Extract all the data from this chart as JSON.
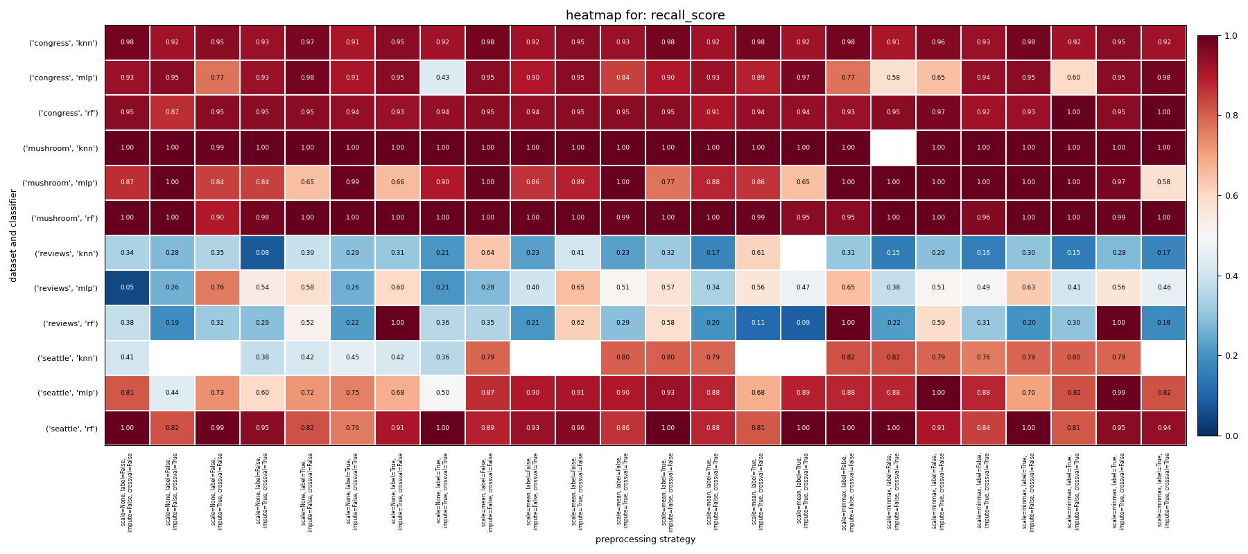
{
  "title": "heatmap for: recall_score",
  "xlabel": "preprocessing strategy",
  "ylabel": "dataset and classifier",
  "rows": [
    "('congress', 'knn')",
    "('congress', 'mlp')",
    "('congress', 'rf')",
    "('mushroom', 'knn')",
    "('mushroom', 'mlp')",
    "('mushroom', 'rf')",
    "('reviews', 'knn')",
    "('reviews', 'mlp')",
    "('reviews', 'rf')",
    "('seattle', 'knn')",
    "('seattle', 'mlp')",
    "('seattle', 'rf')"
  ],
  "cols": [
    "scale=None, label=False,\nimpute=False, crossval=False",
    "scale=None, label=False,\nimpute=False, crossval=True",
    "scale=None, label=False,\nimpute=True, crossval=False",
    "scale=None, label=False,\nimpute=True, crossval=True",
    "scale=None, label=True,\nimpute=False, crossval=False",
    "scale=None, label=True,\nimpute=False, crossval=True",
    "scale=None, label=True,\nimpute=True, crossval=False",
    "scale=None, label=True,\nimpute=True, crossval=True",
    "scale=mean, label=False,\nimpute=False, crossval=False",
    "scale=mean, label=False,\nimpute=False, crossval=True",
    "scale=mean, label=False,\nimpute=True, crossval=False",
    "scale=mean, label=False,\nimpute=True, crossval=True",
    "scale=mean, label=True,\nimpute=False, crossval=False",
    "scale=mean, label=True,\nimpute=False, crossval=True",
    "scale=mean, label=True,\nimpute=True, crossval=False",
    "scale=mean, label=True,\nimpute=True, crossval=True",
    "scale=minmax, label=False,\nimpute=False, crossval=False",
    "scale=minmax, label=False,\nimpute=False, crossval=True",
    "scale=minmax, label=False,\nimpute=True, crossval=False",
    "scale=minmax, label=False,\nimpute=True, crossval=True",
    "scale=minmax, label=True,\nimpute=False, crossval=False",
    "scale=minmax, label=True,\nimpute=False, crossval=True",
    "scale=minmax, label=True,\nimpute=True, crossval=False",
    "scale=minmax, label=True,\nimpute=True, crossval=True"
  ],
  "values": [
    [
      0.98,
      0.92,
      0.95,
      0.93,
      0.97,
      0.91,
      0.95,
      0.92,
      0.98,
      0.92,
      0.95,
      0.93,
      0.98,
      0.92,
      0.98,
      0.92,
      0.98,
      0.91,
      0.96,
      0.93,
      0.98,
      0.92,
      0.95,
      0.92
    ],
    [
      0.93,
      0.95,
      0.77,
      0.93,
      0.98,
      0.91,
      0.95,
      0.43,
      0.95,
      0.9,
      0.95,
      0.84,
      0.9,
      0.93,
      0.89,
      0.97,
      0.77,
      0.58,
      0.65,
      0.94,
      0.95,
      0.6,
      0.95,
      0.98
    ],
    [
      0.95,
      0.87,
      0.95,
      0.95,
      0.95,
      0.94,
      0.93,
      0.94,
      0.95,
      0.94,
      0.95,
      0.95,
      0.95,
      0.91,
      0.94,
      0.94,
      0.93,
      0.95,
      0.97,
      0.92,
      0.93,
      1.0,
      0.95,
      1.0
    ],
    [
      1.0,
      1.0,
      0.99,
      1.0,
      1.0,
      1.0,
      1.0,
      1.0,
      1.0,
      1.0,
      1.0,
      1.0,
      1.0,
      1.0,
      1.0,
      1.0,
      1.0,
      null,
      1.0,
      1.0,
      1.0,
      1.0,
      1.0,
      1.0
    ],
    [
      0.87,
      1.0,
      0.84,
      0.84,
      0.65,
      0.99,
      0.66,
      0.9,
      1.0,
      0.86,
      0.89,
      1.0,
      0.77,
      0.88,
      0.86,
      0.65,
      1.0,
      1.0,
      1.0,
      1.0,
      1.0,
      1.0,
      0.97,
      0.58
    ],
    [
      1.0,
      1.0,
      0.9,
      0.98,
      1.0,
      1.0,
      1.0,
      1.0,
      1.0,
      1.0,
      1.0,
      0.99,
      1.0,
      1.0,
      0.99,
      0.95,
      0.95,
      1.0,
      1.0,
      0.96,
      1.0,
      1.0,
      0.99,
      1.0
    ],
    [
      0.34,
      0.28,
      0.35,
      0.08,
      0.39,
      0.29,
      0.31,
      0.21,
      0.64,
      0.23,
      0.41,
      0.23,
      0.32,
      0.17,
      0.61,
      null,
      0.31,
      0.15,
      0.29,
      0.16,
      0.3,
      0.15,
      0.28,
      0.17
    ],
    [
      0.05,
      0.26,
      0.76,
      0.54,
      0.58,
      0.26,
      0.6,
      0.21,
      0.28,
      0.4,
      0.65,
      0.51,
      0.57,
      0.34,
      0.56,
      0.47,
      0.65,
      0.38,
      0.51,
      0.49,
      0.63,
      0.41,
      0.56,
      0.46
    ],
    [
      0.38,
      0.19,
      0.32,
      0.29,
      0.52,
      0.22,
      1.0,
      0.36,
      0.35,
      0.21,
      0.62,
      0.29,
      0.58,
      0.2,
      0.11,
      0.09,
      1.0,
      0.22,
      0.59,
      0.31,
      0.2,
      0.3,
      1.0,
      0.18
    ],
    [
      0.41,
      null,
      null,
      0.38,
      0.42,
      0.45,
      0.42,
      0.36,
      0.79,
      null,
      null,
      0.8,
      0.8,
      0.79,
      null,
      null,
      0.82,
      0.82,
      0.79,
      0.76,
      0.79,
      0.8,
      0.79,
      null
    ],
    [
      0.81,
      0.44,
      0.73,
      0.6,
      0.72,
      0.75,
      0.68,
      0.5,
      0.87,
      0.9,
      0.91,
      0.9,
      0.93,
      0.88,
      0.68,
      0.89,
      0.88,
      0.88,
      1.0,
      0.88,
      0.7,
      0.82,
      0.99,
      0.82
    ],
    [
      1.0,
      0.82,
      0.99,
      0.95,
      0.82,
      0.76,
      0.91,
      1.0,
      0.89,
      0.93,
      0.96,
      0.86,
      1.0,
      0.88,
      0.81,
      1.0,
      1.0,
      1.0,
      0.91,
      0.84,
      1.0,
      0.81,
      0.95,
      0.94
    ]
  ],
  "vmin": 0.0,
  "vmax": 1.0,
  "cmap": "RdBu_r",
  "figsize": [
    18.0,
    8.0
  ],
  "dpi": 100,
  "annot_fontsize": 6.5,
  "ytick_fontsize": 8,
  "xtick_fontsize": 5.5,
  "title_fontsize": 13,
  "label_fontsize": 9,
  "cbar_tick_fontsize": 9
}
